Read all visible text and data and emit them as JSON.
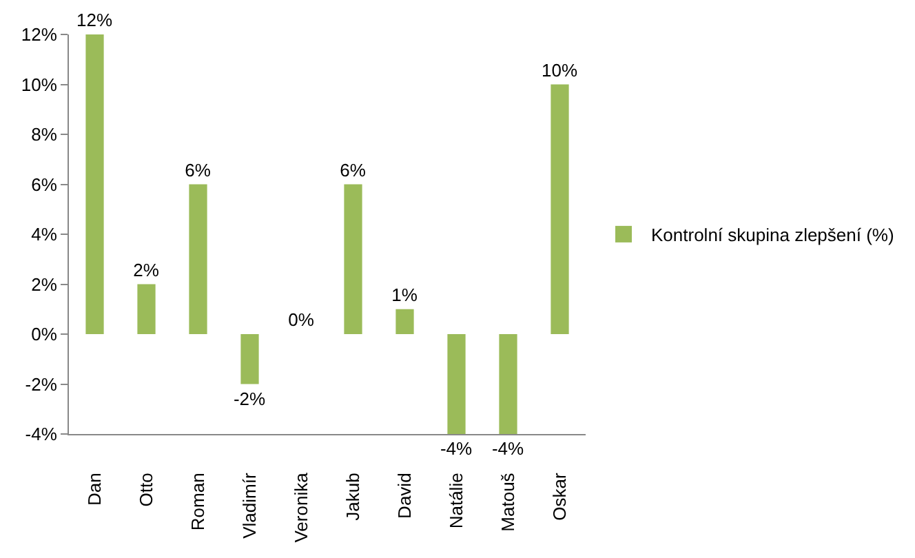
{
  "chart_data": {
    "type": "bar",
    "categories": [
      "Dan",
      "Otto",
      "Roman",
      "Vladimír",
      "Veronika",
      "Jakub",
      "David",
      "Natálie",
      "Matouš",
      "Oskar"
    ],
    "series": [
      {
        "name": "Kontrolní skupina zlepšení (%)",
        "color": "#9bbb59",
        "values": [
          12,
          2,
          6,
          -2,
          0,
          6,
          1,
          -4,
          -4,
          10
        ],
        "value_labels": [
          "12%",
          "2%",
          "6%",
          "-2%",
          "0%",
          "6%",
          "1%",
          "-4%",
          "-4%",
          "10%"
        ]
      }
    ],
    "ylim": [
      -4,
      12
    ],
    "yticks": [
      {
        "value": -4,
        "label": "-4%"
      },
      {
        "value": -2,
        "label": "-2%"
      },
      {
        "value": 0,
        "label": "0%"
      },
      {
        "value": 2,
        "label": "2%"
      },
      {
        "value": 4,
        "label": "4%"
      },
      {
        "value": 6,
        "label": "6%"
      },
      {
        "value": 8,
        "label": "8%"
      },
      {
        "value": 10,
        "label": "10%"
      },
      {
        "value": 12,
        "label": "12%"
      }
    ],
    "grid": false,
    "legend": "right"
  }
}
